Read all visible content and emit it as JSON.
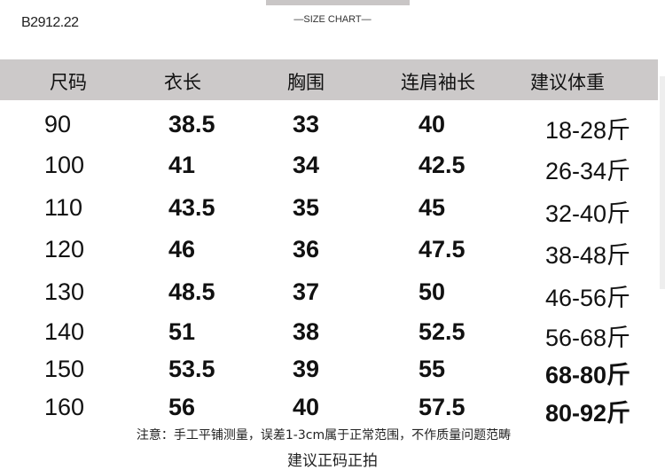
{
  "product_code": "B2912.22",
  "title": "—SIZE CHART—",
  "headers": [
    "尺码",
    "衣长",
    "胸围",
    "连肩袖长",
    "建议体重"
  ],
  "rows": [
    [
      "90",
      "38.5",
      "33",
      "40",
      "18-28斤"
    ],
    [
      "100",
      "41",
      "34",
      "42.5",
      "26-34斤"
    ],
    [
      "110",
      "43.5",
      "35",
      "45",
      "32-40斤"
    ],
    [
      "120",
      "46",
      "36",
      "47.5",
      "38-48斤"
    ],
    [
      "130",
      "48.5",
      "37",
      "50",
      "46-56斤"
    ],
    [
      "140",
      "51",
      "38",
      "52.5",
      "56-68斤"
    ],
    [
      "150",
      "53.5",
      "39",
      "55",
      "68-80斤"
    ],
    [
      "160",
      "56",
      "40",
      "57.5",
      "80-92斤"
    ]
  ],
  "note": "注意：手工平铺测量，误差1-3cm属于正常范围，不作质量问题范畴",
  "recommendation": "建议正码正拍",
  "colors": {
    "header_bg": "#ccc9c9",
    "text": "#111111"
  }
}
